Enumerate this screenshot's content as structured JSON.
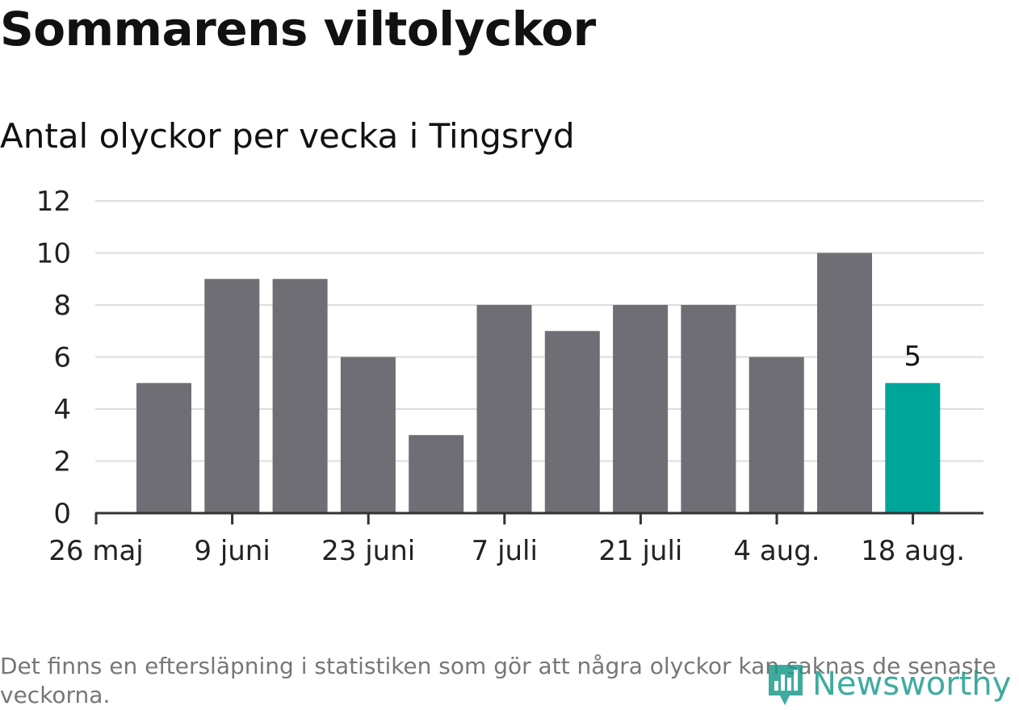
{
  "header": {
    "title": "Sommarens viltolyckor",
    "subtitle": "Antal olyckor per vecka i Tingsryd"
  },
  "footer": {
    "note": "Det finns en eftersläpning i statistiken som gör att några olyckor kan saknas de senaste veckorna.",
    "brand": "Newsworthy"
  },
  "colors": {
    "bar": "#6f6e74",
    "highlight": "#00a599",
    "grid": "#dddddd",
    "axis": "#333333",
    "brand": "#16998a"
  },
  "chart_data": {
    "type": "bar",
    "title": "Sommarens viltolyckor",
    "subtitle": "Antal olyckor per vecka i Tingsryd",
    "x_tick_labels": [
      "26 maj",
      "9 juni",
      "23 juni",
      "7 juli",
      "21 juli",
      "4 aug.",
      "18 aug."
    ],
    "values": [
      5,
      9,
      9,
      6,
      3,
      8,
      7,
      8,
      8,
      6,
      10,
      5
    ],
    "highlight_index": 11,
    "highlight_label": "5",
    "y_ticks": [
      0,
      2,
      4,
      6,
      8,
      10,
      12
    ],
    "ylim": [
      0,
      12
    ],
    "grid": true,
    "legend": "none"
  }
}
